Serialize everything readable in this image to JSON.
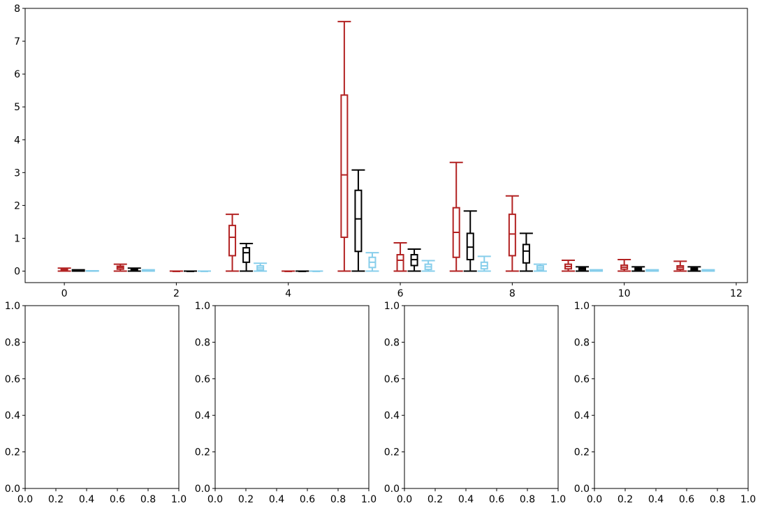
{
  "chart_data": [
    {
      "type": "box",
      "xlim": [
        -0.7,
        12.2
      ],
      "ylim": [
        -0.35,
        8
      ],
      "xticks": [
        0,
        2,
        4,
        6,
        8,
        10,
        12
      ],
      "yticks": [
        0,
        1,
        2,
        3,
        4,
        5,
        6,
        7,
        8
      ],
      "series": [
        {
          "color": "#b22222",
          "offset": 0,
          "boxes": [
            {
              "x": 0,
              "min": 0,
              "q1": 0.03,
              "median": 0.05,
              "q3": 0.07,
              "max": 0.09
            },
            {
              "x": 1,
              "min": 0,
              "q1": 0.06,
              "median": 0.11,
              "q3": 0.15,
              "max": 0.21
            },
            {
              "x": 2,
              "min": 0,
              "q1": 0,
              "median": 0,
              "q3": 0,
              "max": 0
            },
            {
              "x": 3,
              "min": 0,
              "q1": 0.47,
              "median": 1.03,
              "q3": 1.39,
              "max": 1.73
            },
            {
              "x": 4,
              "min": 0,
              "q1": 0,
              "median": 0,
              "q3": 0,
              "max": 0
            },
            {
              "x": 5,
              "min": 0,
              "q1": 1.03,
              "median": 2.93,
              "q3": 5.36,
              "max": 7.6
            },
            {
              "x": 6,
              "min": 0,
              "q1": 0,
              "median": 0.33,
              "q3": 0.5,
              "max": 0.86
            },
            {
              "x": 7,
              "min": 0,
              "q1": 0.42,
              "median": 1.18,
              "q3": 1.93,
              "max": 3.31
            },
            {
              "x": 8,
              "min": 0,
              "q1": 0.47,
              "median": 1.13,
              "q3": 1.73,
              "max": 2.29
            },
            {
              "x": 9,
              "min": 0,
              "q1": 0.07,
              "median": 0.14,
              "q3": 0.21,
              "max": 0.33
            },
            {
              "x": 10,
              "min": 0,
              "q1": 0.06,
              "median": 0.12,
              "q3": 0.18,
              "max": 0.35
            },
            {
              "x": 11,
              "min": 0,
              "q1": 0.05,
              "median": 0.11,
              "q3": 0.16,
              "max": 0.3
            }
          ]
        },
        {
          "color": "#000000",
          "offset": 0.25,
          "boxes": [
            {
              "x": 0,
              "min": 0,
              "q1": 0.01,
              "median": 0.02,
              "q3": 0.03,
              "max": 0.04
            },
            {
              "x": 1,
              "min": 0,
              "q1": 0.02,
              "median": 0.04,
              "q3": 0.06,
              "max": 0.09
            },
            {
              "x": 2,
              "min": 0,
              "q1": 0,
              "median": 0,
              "q3": 0,
              "max": 0
            },
            {
              "x": 3,
              "min": 0,
              "q1": 0.27,
              "median": 0.56,
              "q3": 0.71,
              "max": 0.84
            },
            {
              "x": 4,
              "min": 0,
              "q1": 0,
              "median": 0,
              "q3": 0,
              "max": 0
            },
            {
              "x": 5,
              "min": 0,
              "q1": 0.6,
              "median": 1.59,
              "q3": 2.46,
              "max": 3.08
            },
            {
              "x": 6,
              "min": 0,
              "q1": 0.17,
              "median": 0.35,
              "q3": 0.5,
              "max": 0.67
            },
            {
              "x": 7,
              "min": 0,
              "q1": 0.35,
              "median": 0.73,
              "q3": 1.15,
              "max": 1.83
            },
            {
              "x": 8,
              "min": 0,
              "q1": 0.25,
              "median": 0.61,
              "q3": 0.81,
              "max": 1.15
            },
            {
              "x": 9,
              "min": 0,
              "q1": 0.03,
              "median": 0.07,
              "q3": 0.1,
              "max": 0.13
            },
            {
              "x": 10,
              "min": 0,
              "q1": 0.03,
              "median": 0.06,
              "q3": 0.09,
              "max": 0.13
            },
            {
              "x": 11,
              "min": 0,
              "q1": 0.03,
              "median": 0.06,
              "q3": 0.09,
              "max": 0.13
            }
          ]
        },
        {
          "color": "#87ceeb",
          "offset": 0.5,
          "boxes": [
            {
              "x": 0,
              "min": 0,
              "q1": 0,
              "median": 0.01,
              "q3": 0.01,
              "max": 0.01
            },
            {
              "x": 1,
              "min": 0,
              "q1": 0.01,
              "median": 0.02,
              "q3": 0.03,
              "max": 0.04
            },
            {
              "x": 2,
              "min": 0,
              "q1": 0,
              "median": 0,
              "q3": 0,
              "max": 0
            },
            {
              "x": 3,
              "min": 0,
              "q1": 0.04,
              "median": 0.1,
              "q3": 0.16,
              "max": 0.24
            },
            {
              "x": 4,
              "min": 0,
              "q1": 0,
              "median": 0,
              "q3": 0,
              "max": 0
            },
            {
              "x": 5,
              "min": 0,
              "q1": 0.11,
              "median": 0.27,
              "q3": 0.42,
              "max": 0.56
            },
            {
              "x": 6,
              "min": 0,
              "q1": 0.05,
              "median": 0.13,
              "q3": 0.21,
              "max": 0.32
            },
            {
              "x": 7,
              "min": 0,
              "q1": 0.07,
              "median": 0.16,
              "q3": 0.27,
              "max": 0.45
            },
            {
              "x": 8,
              "min": 0,
              "q1": 0.04,
              "median": 0.1,
              "q3": 0.16,
              "max": 0.21
            },
            {
              "x": 9,
              "min": 0,
              "q1": 0.01,
              "median": 0.02,
              "q3": 0.03,
              "max": 0.04
            },
            {
              "x": 10,
              "min": 0,
              "q1": 0.01,
              "median": 0.02,
              "q3": 0.03,
              "max": 0.04
            },
            {
              "x": 11,
              "min": 0,
              "q1": 0.01,
              "median": 0.02,
              "q3": 0.03,
              "max": 0.04
            }
          ]
        }
      ]
    },
    {
      "type": "empty",
      "xlim": [
        0,
        1
      ],
      "ylim": [
        0,
        1
      ],
      "xticks": [
        "0.0",
        "0.2",
        "0.4",
        "0.6",
        "0.8",
        "1.0"
      ],
      "yticks": [
        "0.0",
        "0.2",
        "0.4",
        "0.6",
        "0.8",
        "1.0"
      ]
    },
    {
      "type": "empty",
      "xlim": [
        0,
        1
      ],
      "ylim": [
        0,
        1
      ],
      "xticks": [
        "0.0",
        "0.2",
        "0.4",
        "0.6",
        "0.8",
        "1.0"
      ],
      "yticks": [
        "0.0",
        "0.2",
        "0.4",
        "0.6",
        "0.8",
        "1.0"
      ]
    },
    {
      "type": "empty",
      "xlim": [
        0,
        1
      ],
      "ylim": [
        0,
        1
      ],
      "xticks": [
        "0.0",
        "0.2",
        "0.4",
        "0.6",
        "0.8",
        "1.0"
      ],
      "yticks": [
        "0.0",
        "0.2",
        "0.4",
        "0.6",
        "0.8",
        "1.0"
      ]
    },
    {
      "type": "empty",
      "xlim": [
        0,
        1
      ],
      "ylim": [
        0,
        1
      ],
      "xticks": [
        "0.0",
        "0.2",
        "0.4",
        "0.6",
        "0.8",
        "1.0"
      ],
      "yticks": [
        "0.0",
        "0.2",
        "0.4",
        "0.6",
        "0.8",
        "1.0"
      ]
    }
  ]
}
